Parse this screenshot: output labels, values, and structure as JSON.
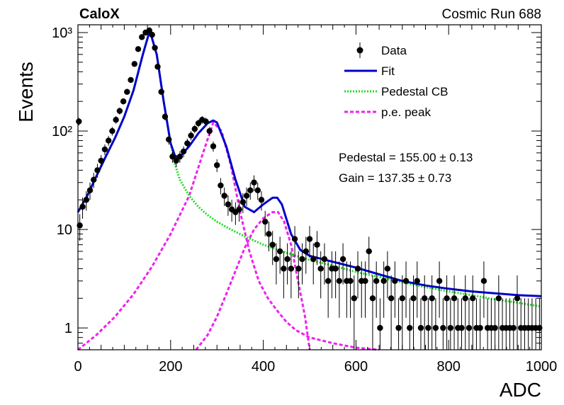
{
  "header": {
    "experiment": "CaloX",
    "run_label": "Cosmic Run 688"
  },
  "fit_results": {
    "pedestal": "Pedestal = 155.00 ± 0.13",
    "gain": "Gain = 137.35 ± 0.73"
  },
  "colors": {
    "data": "#000000",
    "fit": "#0000cc",
    "pedestal": "#22dd22",
    "pe_peak": "#ee22ee"
  },
  "chart_data": {
    "type": "scatter",
    "title": "",
    "xlabel": "ADC",
    "ylabel": "Events",
    "xlim": [
      0,
      1000
    ],
    "ylim": [
      0.6,
      1200
    ],
    "log_y": true,
    "grid": false,
    "legend_position": "top-right",
    "x_ticks": [
      {
        "value": 0,
        "label": "0"
      },
      {
        "value": 200,
        "label": "200"
      },
      {
        "value": 400,
        "label": "400"
      },
      {
        "value": 600,
        "label": "600"
      },
      {
        "value": 800,
        "label": "800"
      },
      {
        "value": 1000,
        "label": "1000"
      }
    ],
    "y_ticks": [
      {
        "value": 1,
        "label": "1"
      },
      {
        "value": 10,
        "label": "10"
      },
      {
        "value": 100,
        "label": "10²"
      },
      {
        "value": 1000,
        "label": "10³"
      }
    ],
    "legend": [
      {
        "key": "data",
        "label": "Data",
        "style": "marker"
      },
      {
        "key": "fit",
        "label": "Fit",
        "style": "solid"
      },
      {
        "key": "pedestal",
        "label": "Pedestal CB",
        "style": "dotted"
      },
      {
        "key": "pe_peak",
        "label": "p.e. peak",
        "style": "dashed"
      }
    ],
    "series": [
      {
        "name": "Data",
        "type": "points",
        "x": [
          2,
          4,
          10,
          18,
          26,
          34,
          42,
          50,
          58,
          66,
          74,
          82,
          90,
          98,
          106,
          114,
          122,
          130,
          138,
          146,
          154,
          160,
          166,
          172,
          180,
          188,
          196,
          204,
          212,
          220,
          228,
          236,
          244,
          252,
          260,
          268,
          276,
          284,
          292,
          300,
          308,
          316,
          324,
          332,
          340,
          348,
          356,
          364,
          372,
          380,
          388,
          396,
          404,
          412,
          420,
          428,
          436,
          444,
          452,
          460,
          468,
          476,
          484,
          492,
          500,
          508,
          516,
          524,
          532,
          540,
          548,
          556,
          564,
          572,
          580,
          588,
          596,
          604,
          612,
          620,
          628,
          636,
          644,
          652,
          660,
          668,
          676,
          684,
          692,
          700,
          708,
          716,
          724,
          732,
          740,
          748,
          756,
          764,
          772,
          780,
          788,
          796,
          804,
          812,
          820,
          828,
          836,
          844,
          852,
          860,
          868,
          876,
          884,
          892,
          900,
          908,
          916,
          924,
          932,
          940,
          948,
          956,
          964,
          972,
          980,
          988,
          996
        ],
        "y": [
          125,
          11,
          17,
          20,
          25,
          32,
          40,
          50,
          65,
          80,
          100,
          130,
          160,
          200,
          250,
          330,
          480,
          680,
          900,
          1000,
          1050,
          950,
          700,
          450,
          250,
          140,
          82,
          55,
          50,
          55,
          62,
          75,
          90,
          105,
          120,
          130,
          125,
          100,
          70,
          45,
          28,
          22,
          18,
          16,
          15,
          16,
          19,
          22,
          25,
          30,
          25,
          20,
          12,
          9,
          7,
          5,
          6,
          4,
          5,
          4,
          8,
          4,
          5,
          6,
          8,
          5,
          7,
          4,
          5,
          3,
          4,
          4,
          3,
          5,
          3,
          3,
          2,
          4,
          3,
          3,
          6,
          2,
          3,
          1,
          3,
          4,
          2,
          3,
          1,
          2,
          3,
          1,
          2,
          3,
          1,
          2,
          1,
          2,
          1,
          3,
          1,
          2,
          1,
          2,
          1,
          1,
          2,
          1,
          2,
          1,
          1,
          3,
          1,
          1,
          1,
          2,
          1,
          1,
          1,
          1,
          2,
          1,
          1,
          1,
          1,
          1,
          1
        ]
      },
      {
        "name": "Fit",
        "type": "curve",
        "x": [
          0,
          20,
          40,
          60,
          80,
          100,
          120,
          140,
          155,
          170,
          185,
          200,
          210,
          220,
          240,
          260,
          280,
          292,
          300,
          320,
          340,
          360,
          380,
          400,
          420,
          430,
          440,
          460,
          480,
          500,
          550,
          600,
          650,
          700,
          750,
          800,
          850,
          900,
          950,
          1000
        ],
        "y": [
          15,
          22,
          35,
          55,
          85,
          140,
          260,
          600,
          1050,
          600,
          200,
          75,
          55,
          55,
          70,
          95,
          120,
          128,
          122,
          70,
          32,
          17,
          15,
          18,
          21,
          21,
          18,
          9,
          6.2,
          5.4,
          4.7,
          4.1,
          3.5,
          3.0,
          2.7,
          2.5,
          2.35,
          2.25,
          2.15,
          2.1
        ]
      },
      {
        "name": "Pedestal CB",
        "type": "curve",
        "x": [
          0,
          20,
          40,
          60,
          80,
          100,
          120,
          140,
          155,
          170,
          185,
          200,
          210,
          220,
          240,
          260,
          280,
          300,
          330,
          360,
          400,
          450,
          500,
          550,
          600,
          650,
          700,
          750,
          800,
          850,
          900,
          950,
          1000
        ],
        "y": [
          15,
          22,
          35,
          55,
          85,
          140,
          260,
          600,
          1050,
          600,
          200,
          75,
          45,
          32,
          22,
          17,
          14,
          12,
          10,
          8.5,
          7,
          5.8,
          4.9,
          4.3,
          3.7,
          3.3,
          2.9,
          2.6,
          2.35,
          2.15,
          1.95,
          1.8,
          1.65
        ]
      },
      {
        "name": "p.e. peak",
        "type": "curve",
        "segments": [
          {
            "x": [
              0,
              40,
              80,
              120,
              160,
              200,
              240,
              270,
              292,
              310,
              330,
              350,
              370,
              390,
              410,
              430,
              450,
              470,
              500,
              550,
              600,
              650
            ],
            "y": [
              0.6,
              0.85,
              1.3,
              2.2,
              4.2,
              9,
              22,
              60,
              122,
              100,
              45,
              15,
              6,
              3,
              2,
              1.5,
              1.15,
              0.95,
              0.8,
              0.7,
              0.63,
              0.6
            ]
          },
          {
            "x": [
              255,
              280,
              300,
              320,
              340,
              360,
              380,
              400,
              420,
              432,
              445,
              460,
              475,
              490,
              500
            ],
            "y": [
              0.6,
              0.85,
              1.3,
              2.2,
              3.8,
              6.5,
              10,
              13,
              15,
              15,
              12,
              7,
              3,
              1.3,
              0.6
            ]
          }
        ]
      }
    ]
  }
}
